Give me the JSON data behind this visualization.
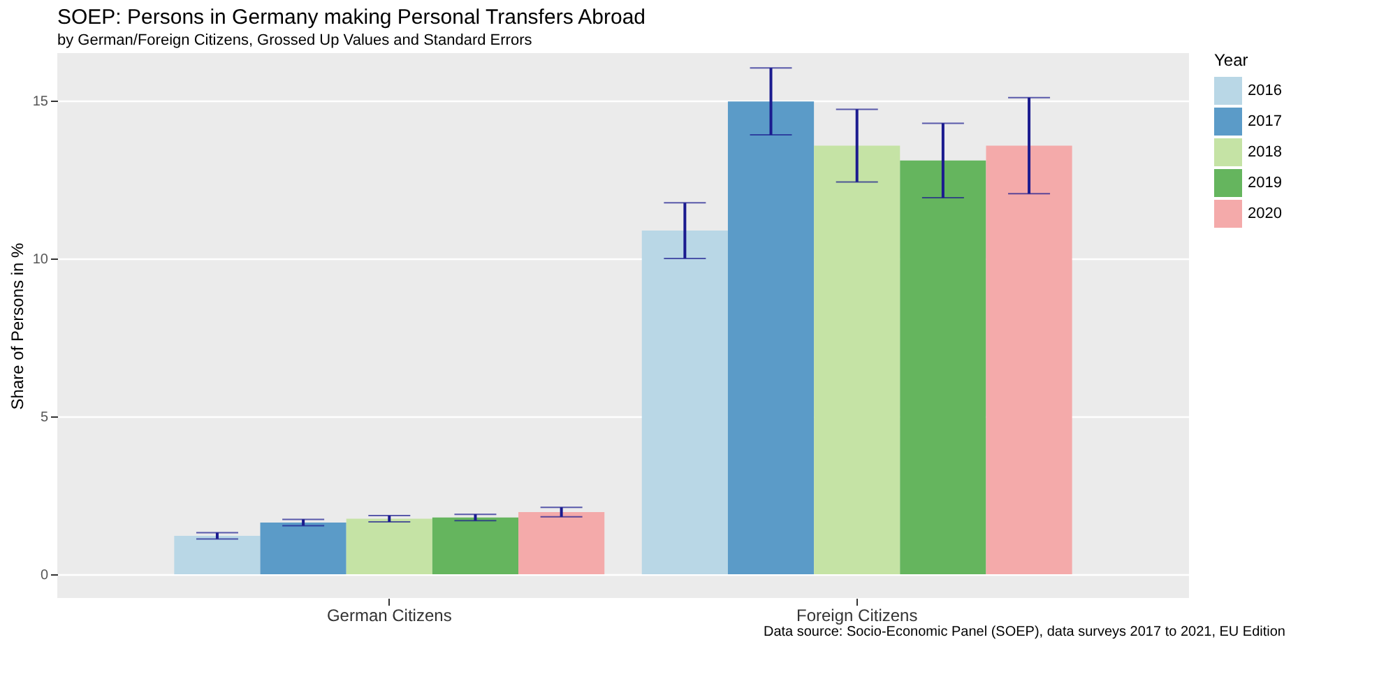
{
  "chart_data": {
    "type": "bar",
    "title": "SOEP: Persons in Germany making Personal Transfers Abroad",
    "subtitle": "by German/Foreign Citizens, Grossed Up Values and Standard Errors",
    "ylabel": "Share of Persons in %",
    "legend_title": "Year",
    "categories": [
      "German Citizens",
      "Foreign Citizens"
    ],
    "series": [
      {
        "name": "2016",
        "color": "#b9d7e6",
        "values": [
          1.22,
          10.88
        ],
        "errors": [
          0.1,
          0.88
        ]
      },
      {
        "name": "2017",
        "color": "#5b9bc8",
        "values": [
          1.64,
          14.97
        ],
        "errors": [
          0.1,
          1.06
        ]
      },
      {
        "name": "2018",
        "color": "#c5e3a5",
        "values": [
          1.76,
          13.57
        ],
        "errors": [
          0.1,
          1.15
        ]
      },
      {
        "name": "2019",
        "color": "#65b55e",
        "values": [
          1.8,
          13.1
        ],
        "errors": [
          0.1,
          1.18
        ]
      },
      {
        "name": "2020",
        "color": "#f4aaaa",
        "values": [
          1.97,
          13.57
        ],
        "errors": [
          0.15,
          1.52
        ]
      }
    ],
    "ylim": [
      -0.75,
      16.5
    ],
    "yticks": [
      0,
      5,
      10,
      15
    ],
    "grid": true,
    "legend": "right",
    "annotations": [
      "Data source: Socio-Economic Panel (SOEP), data surveys 2017 to 2021, EU Edition"
    ]
  }
}
